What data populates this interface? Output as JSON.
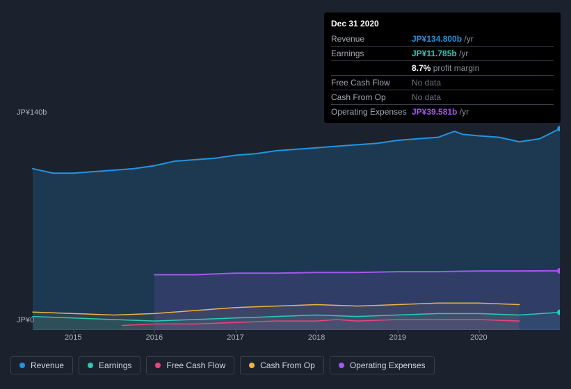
{
  "background_color": "#1b222d",
  "chart": {
    "type": "area-line",
    "x_years": [
      2015,
      2016,
      2017,
      2018,
      2019,
      2020
    ],
    "y_label_top": "JP¥140b",
    "y_label_bottom": "JP¥0",
    "ymin": 0,
    "ymax": 140,
    "x_domain": [
      2014.5,
      2021.0
    ],
    "grid_color": "#2a3240",
    "series": {
      "revenue": {
        "label": "Revenue",
        "color": "#2394df",
        "fill": "rgba(35,148,223,0.20)",
        "width": 2,
        "end_dot": true,
        "data": [
          [
            2014.5,
            108
          ],
          [
            2014.75,
            105
          ],
          [
            2015.0,
            105
          ],
          [
            2015.25,
            106
          ],
          [
            2015.5,
            107
          ],
          [
            2015.75,
            108
          ],
          [
            2016.0,
            110
          ],
          [
            2016.25,
            113
          ],
          [
            2016.5,
            114
          ],
          [
            2016.75,
            115
          ],
          [
            2017.0,
            117
          ],
          [
            2017.25,
            118
          ],
          [
            2017.5,
            120
          ],
          [
            2017.75,
            121
          ],
          [
            2018.0,
            122
          ],
          [
            2018.25,
            123
          ],
          [
            2018.5,
            124
          ],
          [
            2018.75,
            125
          ],
          [
            2019.0,
            127
          ],
          [
            2019.25,
            128
          ],
          [
            2019.5,
            129
          ],
          [
            2019.6,
            131
          ],
          [
            2019.7,
            133
          ],
          [
            2019.8,
            131
          ],
          [
            2020.0,
            130
          ],
          [
            2020.25,
            129
          ],
          [
            2020.5,
            126
          ],
          [
            2020.75,
            128
          ],
          [
            2021.0,
            134.8
          ]
        ]
      },
      "earnings": {
        "label": "Earnings",
        "color": "#2dc9b5",
        "fill": "rgba(45,201,181,0.10)",
        "width": 1.5,
        "end_dot": true,
        "data": [
          [
            2014.5,
            9
          ],
          [
            2015.0,
            8
          ],
          [
            2015.5,
            7
          ],
          [
            2016.0,
            6
          ],
          [
            2016.5,
            7
          ],
          [
            2017.0,
            8
          ],
          [
            2017.5,
            9
          ],
          [
            2018.0,
            10
          ],
          [
            2018.5,
            9
          ],
          [
            2019.0,
            10
          ],
          [
            2019.5,
            11
          ],
          [
            2020.0,
            11
          ],
          [
            2020.5,
            10
          ],
          [
            2021.0,
            11.8
          ]
        ]
      },
      "free_cash_flow": {
        "label": "Free Cash Flow",
        "color": "#e8467e",
        "fill": "rgba(232,70,126,0.08)",
        "width": 1.5,
        "end_dot": false,
        "data": [
          [
            2015.6,
            3
          ],
          [
            2016.0,
            4
          ],
          [
            2016.5,
            4
          ],
          [
            2017.0,
            5
          ],
          [
            2017.5,
            6
          ],
          [
            2018.0,
            6
          ],
          [
            2018.25,
            7
          ],
          [
            2018.5,
            6
          ],
          [
            2019.0,
            7
          ],
          [
            2019.5,
            7
          ],
          [
            2020.0,
            7
          ],
          [
            2020.5,
            6
          ]
        ]
      },
      "cash_from_op": {
        "label": "Cash From Op",
        "color": "#eeb24b",
        "fill": "rgba(238,178,75,0.08)",
        "width": 1.5,
        "end_dot": false,
        "data": [
          [
            2014.5,
            12
          ],
          [
            2015.0,
            11
          ],
          [
            2015.5,
            10
          ],
          [
            2016.0,
            11
          ],
          [
            2016.5,
            13
          ],
          [
            2017.0,
            15
          ],
          [
            2017.5,
            16
          ],
          [
            2018.0,
            17
          ],
          [
            2018.5,
            16
          ],
          [
            2019.0,
            17
          ],
          [
            2019.5,
            18
          ],
          [
            2020.0,
            18
          ],
          [
            2020.5,
            17
          ]
        ]
      },
      "operating_expenses": {
        "label": "Operating Expenses",
        "color": "#a259ec",
        "fill": "rgba(162,89,236,0.15)",
        "width": 2,
        "end_dot": true,
        "data": [
          [
            2016.0,
            37
          ],
          [
            2016.5,
            37
          ],
          [
            2017.0,
            38
          ],
          [
            2017.5,
            38
          ],
          [
            2018.0,
            38.5
          ],
          [
            2018.5,
            38.5
          ],
          [
            2019.0,
            39
          ],
          [
            2019.5,
            39
          ],
          [
            2020.0,
            39.5
          ],
          [
            2020.5,
            39.5
          ],
          [
            2021.0,
            39.6
          ]
        ]
      }
    },
    "legend_order": [
      "revenue",
      "earnings",
      "free_cash_flow",
      "cash_from_op",
      "operating_expenses"
    ]
  },
  "tooltip": {
    "date": "Dec 31 2020",
    "rows": [
      {
        "label": "Revenue",
        "value": "JP¥134.800b",
        "unit": "/yr",
        "color": "#2394df"
      },
      {
        "label": "Earnings",
        "value": "JP¥11.785b",
        "unit": "/yr",
        "color": "#2dc9b5"
      },
      {
        "label": "",
        "margin_pct": "8.7%",
        "margin_label": "profit margin"
      },
      {
        "label": "Free Cash Flow",
        "nodata": "No data"
      },
      {
        "label": "Cash From Op",
        "nodata": "No data"
      },
      {
        "label": "Operating Expenses",
        "value": "JP¥39.581b",
        "unit": "/yr",
        "color": "#a259ec"
      }
    ]
  }
}
